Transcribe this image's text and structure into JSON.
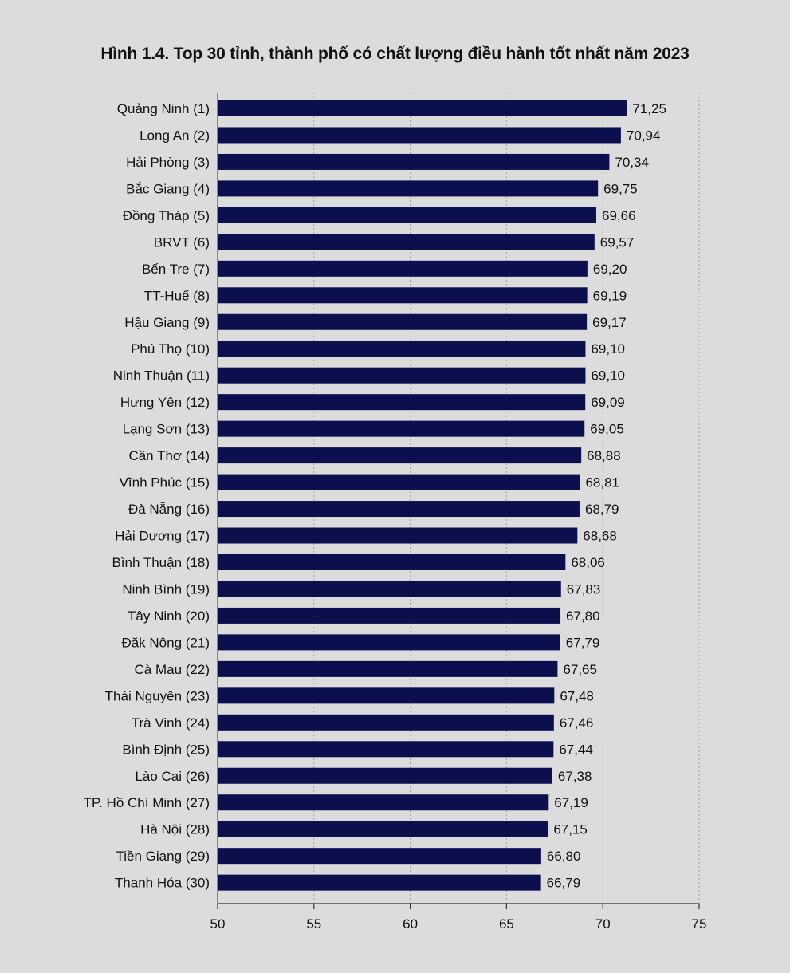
{
  "chart_data": {
    "type": "bar",
    "orientation": "horizontal",
    "title": "Hình 1.4. Top 30 tỉnh, thành phố có chất lượng điều hành tốt nhất năm 2023",
    "categories": [
      "Quảng Ninh (1)",
      "Long An (2)",
      "Hải Phòng (3)",
      "Bắc Giang (4)",
      "Đồng Tháp (5)",
      "BRVT (6)",
      "Bến Tre (7)",
      "TT-Huế (8)",
      "Hậu Giang (9)",
      "Phú Thọ (10)",
      "Ninh Thuận (11)",
      "Hưng Yên (12)",
      "Lạng Sơn (13)",
      "Cần Thơ (14)",
      "Vĩnh Phúc (15)",
      "Đà Nẵng (16)",
      "Hải Dương (17)",
      "Bình Thuận (18)",
      "Ninh Bình (19)",
      "Tây Ninh (20)",
      "Đăk Nông (21)",
      "Cà Mau (22)",
      "Thái Nguyên (23)",
      "Trà Vinh (24)",
      "Bình Định (25)",
      "Lào Cai (26)",
      "TP. Hồ Chí Minh (27)",
      "Hà Nội (28)",
      "Tiền Giang (29)",
      "Thanh Hóa (30)"
    ],
    "values": [
      71.25,
      70.94,
      70.34,
      69.75,
      69.66,
      69.57,
      69.2,
      69.19,
      69.17,
      69.1,
      69.1,
      69.09,
      69.05,
      68.88,
      68.81,
      68.79,
      68.68,
      68.06,
      67.83,
      67.8,
      67.79,
      67.65,
      67.48,
      67.46,
      67.44,
      67.38,
      67.19,
      67.15,
      66.8,
      66.79
    ],
    "value_labels": [
      "71,25",
      "70,94",
      "70,34",
      "69,75",
      "69,66",
      "69,57",
      "69,20",
      "69,19",
      "69,17",
      "69,10",
      "69,10",
      "69,09",
      "69,05",
      "68,88",
      "68,81",
      "68,79",
      "68,68",
      "68,06",
      "67,83",
      "67,80",
      "67,79",
      "67,65",
      "67,48",
      "67,46",
      "67,44",
      "67,38",
      "67,19",
      "67,15",
      "66,80",
      "66,79"
    ],
    "xlim": [
      50,
      75
    ],
    "xticks": [
      50,
      55,
      60,
      65,
      70,
      75
    ],
    "grid": true,
    "grid_style": "dotted",
    "colors": {
      "bar": "#0b0f4d",
      "grid": "#a0a0a0",
      "axis": "#333333",
      "background": "#dcdcdc"
    }
  }
}
